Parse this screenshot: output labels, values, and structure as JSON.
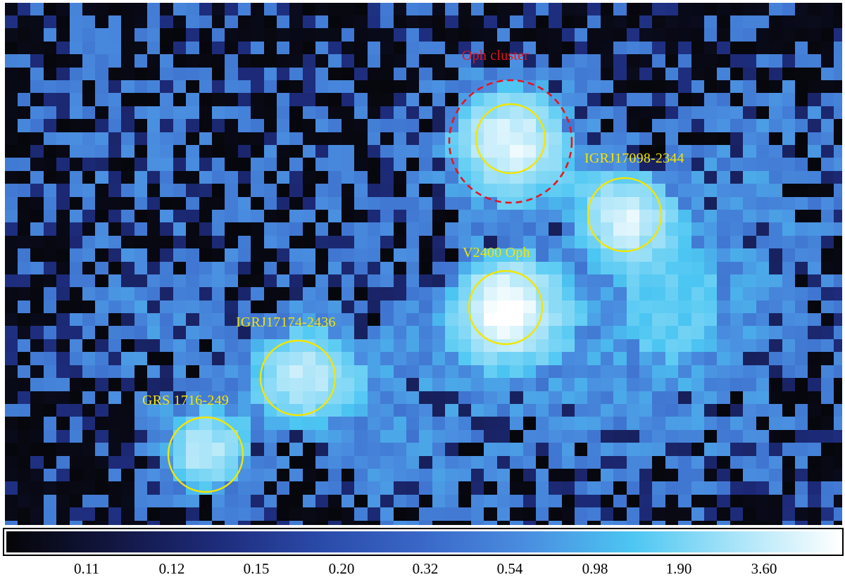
{
  "sources": [
    {
      "id": "oph-cluster",
      "label": "Oph cluster",
      "color": "#e8141e",
      "style": "dashed"
    },
    {
      "id": "oph-core",
      "label": "",
      "color": "#f2e600",
      "style": "solid"
    },
    {
      "id": "igrj17098",
      "label": "IGRJ17098-2344",
      "color": "#f2e600",
      "style": "solid"
    },
    {
      "id": "v2400",
      "label": "V2400 Oph",
      "color": "#f2e600",
      "style": "solid"
    },
    {
      "id": "igrj17174",
      "label": "IGRJ17174-2436",
      "color": "#f2e600",
      "style": "solid"
    },
    {
      "id": "grs1716",
      "label": "GRS 1716-249",
      "color": "#f2e600",
      "style": "solid"
    }
  ],
  "colorbar": {
    "ticks": [
      "0.11",
      "0.12",
      "0.15",
      "0.20",
      "0.32",
      "0.54",
      "0.98",
      "1.90",
      "3.60"
    ],
    "colors": [
      "#050507",
      "#121640",
      "#1d2b7a",
      "#2a4aa8",
      "#3a68c8",
      "#4a8ee0",
      "#4cc6f2",
      "#a9e4f8",
      "#ffffff"
    ]
  }
}
